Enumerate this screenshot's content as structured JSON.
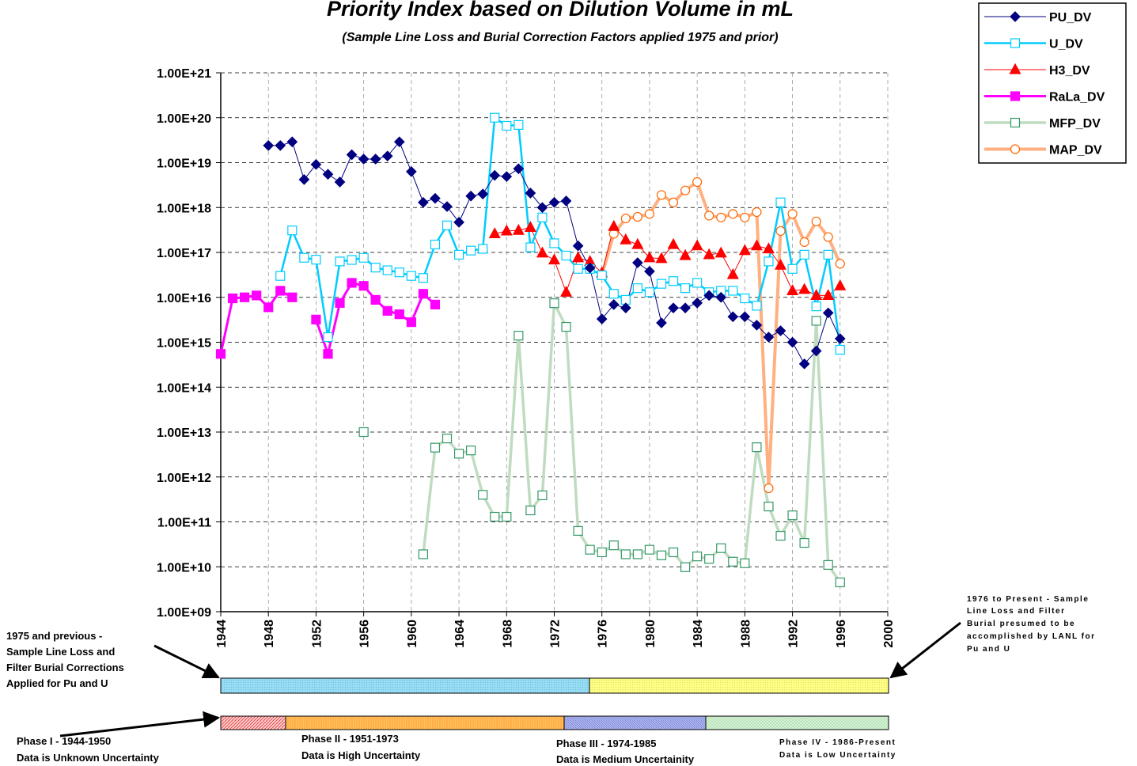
{
  "chart_data": {
    "type": "line",
    "title": "Priority Index based on Dilution Volume in mL",
    "subtitle": "(Sample Line Loss and Burial Correction Factors applied 1975 and prior)",
    "yscale": "log",
    "grid": true,
    "legend": "top-right",
    "xlim": [
      1944,
      2000
    ],
    "xticks": [
      1944,
      1948,
      1952,
      1956,
      1960,
      1964,
      1968,
      1972,
      1976,
      1980,
      1984,
      1988,
      1992,
      1996,
      2000
    ],
    "ylim": [
      1000000000.0,
      1e+21
    ],
    "yticks": [
      {
        "value": 1000000000.0,
        "label": "1.00E+09"
      },
      {
        "value": 10000000000.0,
        "label": "1.00E+10"
      },
      {
        "value": 100000000000.0,
        "label": "1.00E+11"
      },
      {
        "value": 1000000000000.0,
        "label": "1.00E+12"
      },
      {
        "value": 10000000000000.0,
        "label": "1.00E+13"
      },
      {
        "value": 100000000000000.0,
        "label": "1.00E+14"
      },
      {
        "value": 1000000000000000.0,
        "label": "1.00E+15"
      },
      {
        "value": 1e+16,
        "label": "1.00E+16"
      },
      {
        "value": 1e+17,
        "label": "1.00E+17"
      },
      {
        "value": 1e+18,
        "label": "1.00E+18"
      },
      {
        "value": 1e+19,
        "label": "1.00E+19"
      },
      {
        "value": 1e+20,
        "label": "1.00E+20"
      },
      {
        "value": 1e+21,
        "label": "1.00E+21"
      }
    ],
    "x": [
      1944,
      1945,
      1946,
      1947,
      1948,
      1949,
      1950,
      1951,
      1952,
      1953,
      1954,
      1955,
      1956,
      1957,
      1958,
      1959,
      1960,
      1961,
      1962,
      1963,
      1964,
      1965,
      1966,
      1967,
      1968,
      1969,
      1970,
      1971,
      1972,
      1973,
      1974,
      1975,
      1976,
      1977,
      1978,
      1979,
      1980,
      1981,
      1982,
      1983,
      1984,
      1985,
      1986,
      1987,
      1988,
      1989,
      1990,
      1991,
      1992,
      1993,
      1994,
      1995,
      1996
    ],
    "series": [
      {
        "name": "PU_DV",
        "color": "#000080",
        "marker": "diamond",
        "marker_color": "#000080",
        "marker_fill": "#000080",
        "values": [
          null,
          null,
          null,
          null,
          2.4e+19,
          2.4e+19,
          2.9e+19,
          4.2e+18,
          9.1e+18,
          5.5e+18,
          3.7e+18,
          1.5e+19,
          1.2e+19,
          1.2e+19,
          1.4e+19,
          2.9e+19,
          6.3e+18,
          1.3e+18,
          1.6e+18,
          1.05e+18,
          4.7e+17,
          1.8e+18,
          2e+18,
          5.2e+18,
          4.9e+18,
          7.3e+18,
          2.1e+18,
          1e+18,
          1.3e+18,
          1.4e+18,
          1.4e+17,
          4.5e+16,
          3300000000000000.0,
          6900000000000000.0,
          5800000000000000.0,
          5.9e+16,
          3.8e+16,
          2700000000000000.0,
          5800000000000000.0,
          5800000000000000.0,
          7500000000000000.0,
          1.1e+16,
          1e+16,
          3700000000000000.0,
          3700000000000000.0,
          2400000000000000.0,
          1300000000000000.0,
          1800000000000000.0,
          1000000000000000.0,
          330000000000000.0,
          640000000000000.0,
          4500000000000000.0,
          1200000000000000.0
        ]
      },
      {
        "name": "U_DV",
        "color": "#00CCFF",
        "marker": "square",
        "marker_color": "#00CCFF",
        "marker_fill": "#ffffff",
        "values": [
          null,
          null,
          null,
          null,
          null,
          3e+16,
          3.1e+17,
          7.6e+16,
          6.9e+16,
          1300000000000000.0,
          6.3e+16,
          6.8e+16,
          7.6e+16,
          4.6e+16,
          4e+16,
          3.6e+16,
          3e+16,
          2.7e+16,
          1.5e+17,
          4e+17,
          8.9e+16,
          1.1e+17,
          1.2e+17,
          1e+20,
          6.6e+19,
          6.9e+19,
          1.3e+17,
          6e+17,
          1.6e+17,
          8.5e+16,
          4.3e+16,
          4.3e+16,
          3.1e+16,
          1.2e+16,
          8800000000000000.0,
          1.6e+16,
          1.3e+16,
          2e+16,
          2.3e+16,
          1.6e+16,
          2.1e+16,
          1.3e+16,
          1.4e+16,
          1.4e+16,
          9500000000000000.0,
          6500000000000000.0,
          6.3e+16,
          1.3e+18,
          4.3e+16,
          8.9e+16,
          6300000000000000.0,
          8.9e+16,
          680000000000000.0
        ]
      },
      {
        "name": "H3_DV",
        "color": "#FF0000",
        "marker": "triangle",
        "marker_color": "#FF0000",
        "marker_fill": "#FF0000",
        "values": [
          null,
          null,
          null,
          null,
          null,
          null,
          null,
          null,
          null,
          null,
          null,
          null,
          null,
          null,
          null,
          null,
          null,
          null,
          null,
          null,
          null,
          null,
          null,
          2.6e+17,
          3e+17,
          3.1e+17,
          3.6e+17,
          9.7e+16,
          6.8e+16,
          1.3e+16,
          7.6e+16,
          6.3e+16,
          3.5e+16,
          3.8e+17,
          1.9e+17,
          1.5e+17,
          7.6e+16,
          7.3e+16,
          1.5e+17,
          8.5e+16,
          1.4e+17,
          8.9e+16,
          9.7e+16,
          3.2e+16,
          1.1e+17,
          1.4e+17,
          1.2e+17,
          5.2e+16,
          1.4e+16,
          1.5e+16,
          1.1e+16,
          1.1e+16,
          1.8e+16
        ]
      },
      {
        "name": "RaLa_DV",
        "color": "#FF00FF",
        "marker": "square",
        "marker_color": "#FF00FF",
        "marker_fill": "#FF00FF",
        "values": [
          550000000000000.0,
          9500000000000000.0,
          1e+16,
          1.1e+16,
          6000000000000000.0,
          1.4e+16,
          1e+16,
          null,
          3200000000000000.0,
          550000000000000.0,
          7500000000000000.0,
          2.1e+16,
          1.8e+16,
          8800000000000000.0,
          5000000000000000.0,
          4200000000000000.0,
          2800000000000000.0,
          1.2e+16,
          6900000000000000.0,
          null,
          null,
          null,
          null,
          null,
          null,
          null,
          null,
          null,
          null,
          null,
          null,
          null,
          null,
          null,
          null,
          null,
          null,
          null,
          null,
          null,
          null,
          null,
          null,
          null,
          null,
          null,
          null,
          null,
          null,
          null,
          null,
          null,
          null
        ]
      },
      {
        "name": "MFP_DV",
        "color": "#C0DCC0",
        "marker": "square",
        "marker_color": "#339966",
        "marker_fill": "#ffffff",
        "values": [
          null,
          null,
          null,
          null,
          null,
          null,
          null,
          null,
          null,
          null,
          null,
          null,
          10000000000000.0,
          null,
          null,
          null,
          null,
          19000000000.0,
          4500000000000.0,
          7200000000000.0,
          3300000000000.0,
          3900000000000.0,
          400000000000.0,
          130000000000.0,
          130000000000.0,
          1400000000000000.0,
          180000000000.0,
          390000000000.0,
          7400000000000000.0,
          2200000000000000.0,
          63000000000.0,
          24000000000.0,
          21000000000.0,
          30000000000.0,
          19000000000.0,
          19000000000.0,
          24000000000.0,
          18000000000.0,
          21000000000.0,
          9800000000.0,
          17000000000.0,
          15000000000.0,
          26000000000.0,
          13000000000.0,
          12000000000.0,
          4600000000000.0,
          220000000000.0,
          49000000000.0,
          140000000000.0,
          34000000000.0,
          3000000000000000.0,
          11000000000.0,
          4500000000.0
        ]
      },
      {
        "name": "MAP_DV",
        "color": "#FFB080",
        "marker": "circle",
        "marker_color": "#FF6600",
        "marker_fill": "#ffffff",
        "values": [
          null,
          null,
          null,
          null,
          null,
          null,
          null,
          null,
          null,
          null,
          null,
          null,
          null,
          null,
          null,
          null,
          null,
          null,
          null,
          null,
          null,
          null,
          null,
          null,
          null,
          null,
          null,
          null,
          null,
          null,
          null,
          null,
          3.1e+16,
          2.6e+17,
          5.7e+17,
          6.2e+17,
          7.2e+17,
          1.9e+18,
          1.3e+18,
          2.4e+18,
          3.7e+18,
          6.6e+17,
          6e+17,
          7.2e+17,
          6e+17,
          7.9e+17,
          560000000000.0,
          3e+17,
          7.2e+17,
          1.7e+17,
          4.9e+17,
          2.2e+17,
          5.6e+16
        ]
      }
    ],
    "annotations": [
      [
        "1975 and previous -",
        "Sample Line Loss and",
        "Filter Burial Corrections",
        "Applied for Pu and U"
      ],
      [
        "1976 to Present - Sample",
        "Line Loss and Filter",
        "Burial presumed to be",
        "accomplished by LANL for",
        "Pu and U"
      ],
      [
        "Phase I - 1944-1950",
        "Data is Unknown Uncertainty"
      ],
      [
        "Phase II - 1951-1973",
        "Data is High Uncertainty"
      ],
      [
        "Phase III - 1974-1985",
        "Data is Medium Uncertainity"
      ],
      [
        "Phase IV - 1986-Present",
        "Data is Low Uncertainty"
      ]
    ]
  }
}
